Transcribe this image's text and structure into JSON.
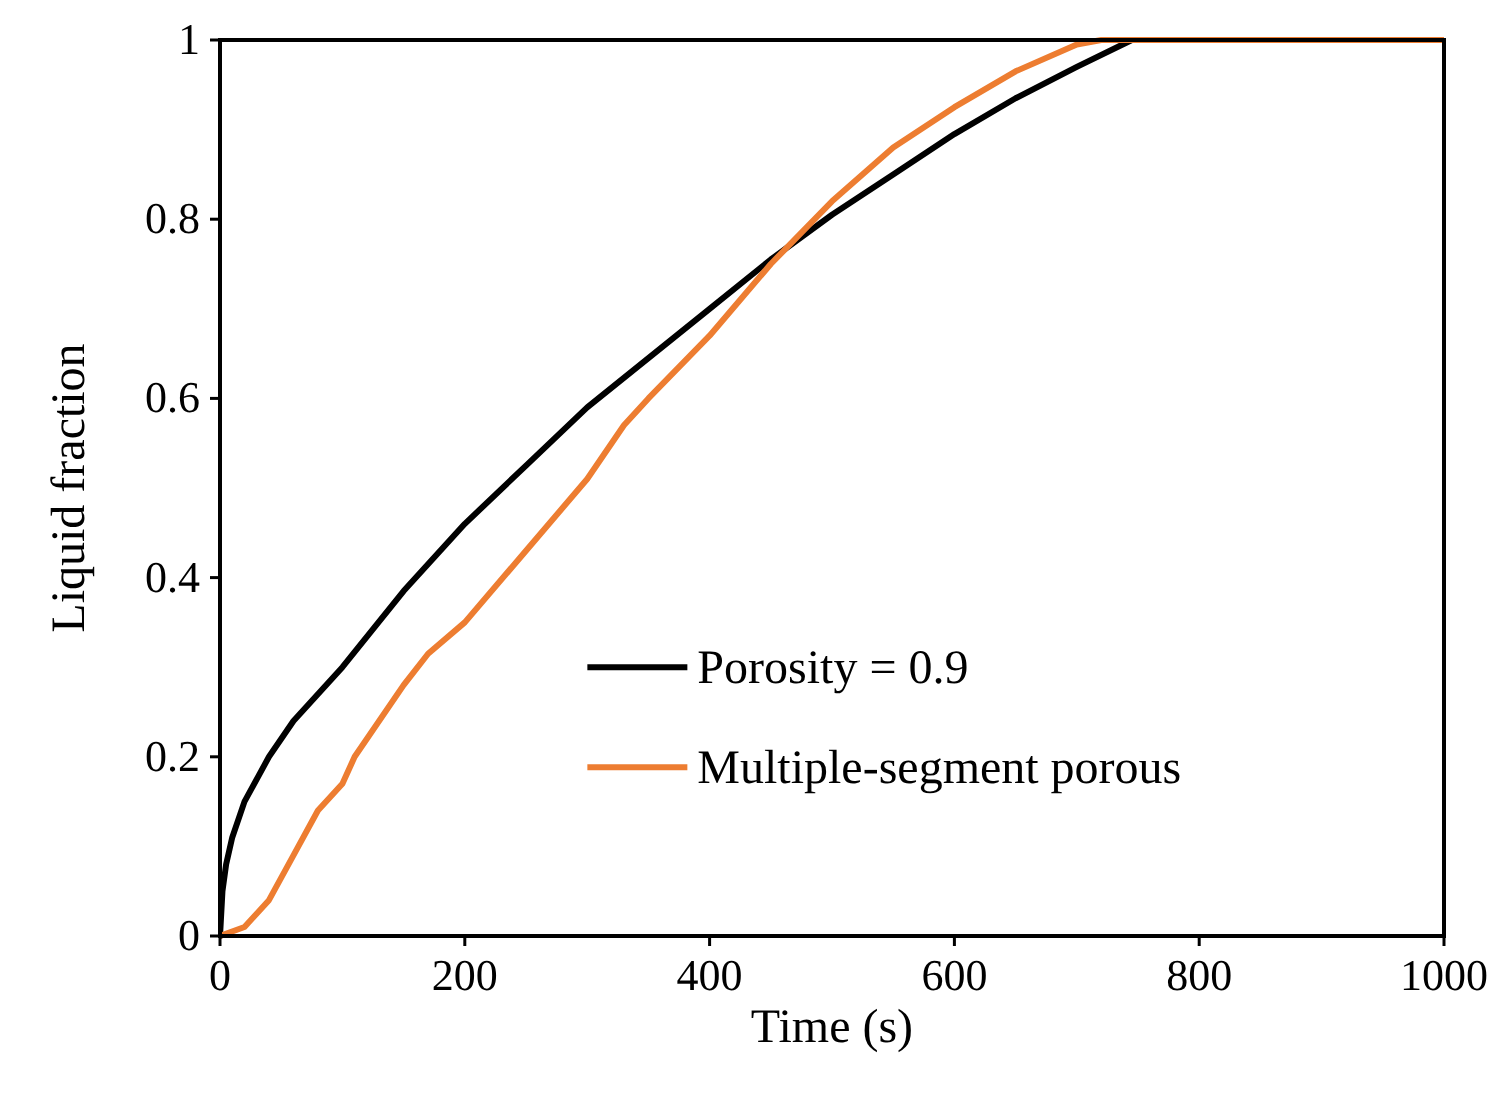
{
  "chart_data": {
    "type": "line",
    "xlabel": "Time (s)",
    "ylabel": "Liquid fraction",
    "xlim": [
      0,
      1000
    ],
    "ylim": [
      0,
      1
    ],
    "xticks": [
      0,
      200,
      400,
      600,
      800,
      1000
    ],
    "yticks": [
      0,
      0.2,
      0.4,
      0.6,
      0.8,
      1
    ],
    "grid": false,
    "legend": "bottom right",
    "marker": "none",
    "line_style": "solid",
    "series": [
      {
        "name": "Porosity = 0.9",
        "color": "#000000",
        "x": [
          0,
          2,
          5,
          10,
          20,
          40,
          60,
          100,
          150,
          200,
          250,
          300,
          350,
          400,
          450,
          500,
          550,
          600,
          650,
          700,
          745,
          1000
        ],
        "values": [
          0,
          0.05,
          0.08,
          0.11,
          0.15,
          0.2,
          0.24,
          0.3,
          0.385,
          0.46,
          0.525,
          0.59,
          0.645,
          0.7,
          0.755,
          0.805,
          0.85,
          0.895,
          0.935,
          0.97,
          1,
          1
        ]
      },
      {
        "name": "Multiple-segment porous",
        "color": "#ed7d31",
        "x": [
          0,
          20,
          40,
          60,
          80,
          100,
          110,
          150,
          170,
          200,
          250,
          300,
          330,
          350,
          400,
          450,
          500,
          550,
          600,
          650,
          700,
          720,
          1000
        ],
        "values": [
          0,
          0.01,
          0.04,
          0.09,
          0.14,
          0.17,
          0.2,
          0.28,
          0.315,
          0.35,
          0.43,
          0.51,
          0.57,
          0.6,
          0.67,
          0.75,
          0.82,
          0.88,
          0.925,
          0.965,
          0.995,
          1,
          1
        ]
      }
    ]
  }
}
